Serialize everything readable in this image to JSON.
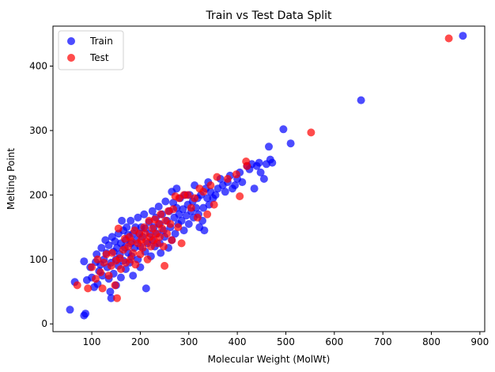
{
  "chart_data": {
    "type": "scatter",
    "title": "Train vs Test Data Split",
    "xlabel": "Molecular Weight (MolWt)",
    "ylabel": "Melting Point",
    "xlim": [
      20,
      910
    ],
    "ylim": [
      -12,
      462
    ],
    "xticks": [
      100,
      200,
      300,
      400,
      500,
      600,
      700,
      800,
      900
    ],
    "yticks": [
      0,
      100,
      200,
      300,
      400
    ],
    "grid": false,
    "legend_position": "upper left",
    "series": [
      {
        "name": "Train",
        "color": "#0000ff",
        "alpha": 0.7,
        "points": [
          [
            55,
            22
          ],
          [
            84,
            13
          ],
          [
            87,
            16
          ],
          [
            65,
            65
          ],
          [
            84,
            97
          ],
          [
            90,
            68
          ],
          [
            97,
            88
          ],
          [
            100,
            72
          ],
          [
            105,
            57
          ],
          [
            108,
            96
          ],
          [
            110,
            108
          ],
          [
            112,
            62
          ],
          [
            115,
            82
          ],
          [
            118,
            92
          ],
          [
            120,
            118
          ],
          [
            122,
            75
          ],
          [
            125,
            100
          ],
          [
            128,
            130
          ],
          [
            130,
            110
          ],
          [
            132,
            88
          ],
          [
            135,
            70
          ],
          [
            135,
            122
          ],
          [
            138,
            50
          ],
          [
            140,
            95
          ],
          [
            140,
            40
          ],
          [
            142,
            135
          ],
          [
            145,
            112
          ],
          [
            145,
            78
          ],
          [
            148,
            128
          ],
          [
            150,
            100
          ],
          [
            150,
            60
          ],
          [
            152,
            118
          ],
          [
            155,
            90
          ],
          [
            155,
            140
          ],
          [
            158,
            108
          ],
          [
            160,
            125
          ],
          [
            160,
            72
          ],
          [
            162,
            160
          ],
          [
            165,
            98
          ],
          [
            165,
            145
          ],
          [
            168,
            118
          ],
          [
            170,
            130
          ],
          [
            170,
            85
          ],
          [
            172,
            150
          ],
          [
            175,
            110
          ],
          [
            175,
            138
          ],
          [
            178,
            95
          ],
          [
            180,
            125
          ],
          [
            180,
            160
          ],
          [
            182,
            105
          ],
          [
            185,
            140
          ],
          [
            185,
            75
          ],
          [
            188,
            118
          ],
          [
            190,
            150
          ],
          [
            192,
            130
          ],
          [
            195,
            100
          ],
          [
            195,
            165
          ],
          [
            198,
            140
          ],
          [
            200,
            120
          ],
          [
            200,
            88
          ],
          [
            202,
            150
          ],
          [
            205,
            135
          ],
          [
            208,
            170
          ],
          [
            210,
            112
          ],
          [
            210,
            148
          ],
          [
            212,
            55
          ],
          [
            215,
            125
          ],
          [
            218,
            158
          ],
          [
            220,
            140
          ],
          [
            222,
            105
          ],
          [
            225,
            175
          ],
          [
            225,
            130
          ],
          [
            228,
            150
          ],
          [
            230,
            120
          ],
          [
            232,
            165
          ],
          [
            235,
            140
          ],
          [
            238,
            182
          ],
          [
            240,
            125
          ],
          [
            240,
            155
          ],
          [
            242,
            110
          ],
          [
            245,
            170
          ],
          [
            248,
            145
          ],
          [
            250,
            135
          ],
          [
            252,
            190
          ],
          [
            255,
            160
          ],
          [
            258,
            118
          ],
          [
            260,
            175
          ],
          [
            262,
            150
          ],
          [
            265,
            205
          ],
          [
            265,
            130
          ],
          [
            268,
            188
          ],
          [
            270,
            165
          ],
          [
            272,
            140
          ],
          [
            275,
            210
          ],
          [
            275,
            180
          ],
          [
            278,
            155
          ],
          [
            280,
            170
          ],
          [
            282,
            195
          ],
          [
            285,
            160
          ],
          [
            288,
            178
          ],
          [
            290,
            145
          ],
          [
            292,
            200
          ],
          [
            295,
            168
          ],
          [
            298,
            185
          ],
          [
            300,
            155
          ],
          [
            302,
            200
          ],
          [
            305,
            175
          ],
          [
            308,
            190
          ],
          [
            310,
            165
          ],
          [
            312,
            215
          ],
          [
            315,
            180
          ],
          [
            318,
            195
          ],
          [
            320,
            170
          ],
          [
            322,
            150
          ],
          [
            325,
            200
          ],
          [
            328,
            160
          ],
          [
            330,
            180
          ],
          [
            332,
            145
          ],
          [
            335,
            210
          ],
          [
            338,
            195
          ],
          [
            340,
            220
          ],
          [
            342,
            185
          ],
          [
            345,
            205
          ],
          [
            350,
            195
          ],
          [
            355,
            200
          ],
          [
            360,
            210
          ],
          [
            365,
            225
          ],
          [
            370,
            215
          ],
          [
            375,
            205
          ],
          [
            380,
            220
          ],
          [
            385,
            230
          ],
          [
            390,
            210
          ],
          [
            395,
            215
          ],
          [
            400,
            225
          ],
          [
            405,
            235
          ],
          [
            410,
            220
          ],
          [
            420,
            245
          ],
          [
            425,
            240
          ],
          [
            430,
            248
          ],
          [
            435,
            210
          ],
          [
            440,
            245
          ],
          [
            445,
            250
          ],
          [
            448,
            235
          ],
          [
            455,
            225
          ],
          [
            460,
            248
          ],
          [
            465,
            275
          ],
          [
            468,
            255
          ],
          [
            472,
            250
          ],
          [
            495,
            302
          ],
          [
            510,
            280
          ],
          [
            655,
            347
          ],
          [
            865,
            447
          ]
        ]
      },
      {
        "name": "Test",
        "color": "#ff0000",
        "alpha": 0.7,
        "points": [
          [
            70,
            60
          ],
          [
            92,
            55
          ],
          [
            100,
            88
          ],
          [
            108,
            70
          ],
          [
            112,
            100
          ],
          [
            118,
            80
          ],
          [
            122,
            55
          ],
          [
            125,
            95
          ],
          [
            130,
            108
          ],
          [
            135,
            75
          ],
          [
            140,
            90
          ],
          [
            142,
            110
          ],
          [
            148,
            60
          ],
          [
            150,
            98
          ],
          [
            152,
            40
          ],
          [
            155,
            148
          ],
          [
            158,
            102
          ],
          [
            160,
            85
          ],
          [
            165,
            115
          ],
          [
            168,
            132
          ],
          [
            170,
            95
          ],
          [
            175,
            120
          ],
          [
            178,
            135
          ],
          [
            180,
            100
          ],
          [
            182,
            128
          ],
          [
            185,
            110
          ],
          [
            188,
            145
          ],
          [
            190,
            92
          ],
          [
            195,
            125
          ],
          [
            198,
            140
          ],
          [
            200,
            108
          ],
          [
            202,
            130
          ],
          [
            205,
            118
          ],
          [
            208,
            150
          ],
          [
            210,
            140
          ],
          [
            212,
            128
          ],
          [
            215,
            100
          ],
          [
            218,
            160
          ],
          [
            220,
            135
          ],
          [
            222,
            120
          ],
          [
            225,
            148
          ],
          [
            228,
            130
          ],
          [
            230,
            162
          ],
          [
            232,
            140
          ],
          [
            235,
            125
          ],
          [
            238,
            155
          ],
          [
            240,
            135
          ],
          [
            242,
            170
          ],
          [
            245,
            148
          ],
          [
            248,
            120
          ],
          [
            250,
            90
          ],
          [
            252,
            160
          ],
          [
            255,
            140
          ],
          [
            258,
            175
          ],
          [
            262,
            155
          ],
          [
            265,
            130
          ],
          [
            268,
            178
          ],
          [
            272,
            198
          ],
          [
            278,
            150
          ],
          [
            280,
            195
          ],
          [
            285,
            125
          ],
          [
            290,
            200
          ],
          [
            298,
            200
          ],
          [
            305,
            180
          ],
          [
            312,
            195
          ],
          [
            318,
            165
          ],
          [
            322,
            210
          ],
          [
            330,
            205
          ],
          [
            338,
            170
          ],
          [
            345,
            215
          ],
          [
            352,
            185
          ],
          [
            358,
            228
          ],
          [
            380,
            225
          ],
          [
            398,
            232
          ],
          [
            405,
            198
          ],
          [
            418,
            252
          ],
          [
            420,
            245
          ],
          [
            552,
            297
          ],
          [
            836,
            443
          ]
        ]
      }
    ]
  }
}
